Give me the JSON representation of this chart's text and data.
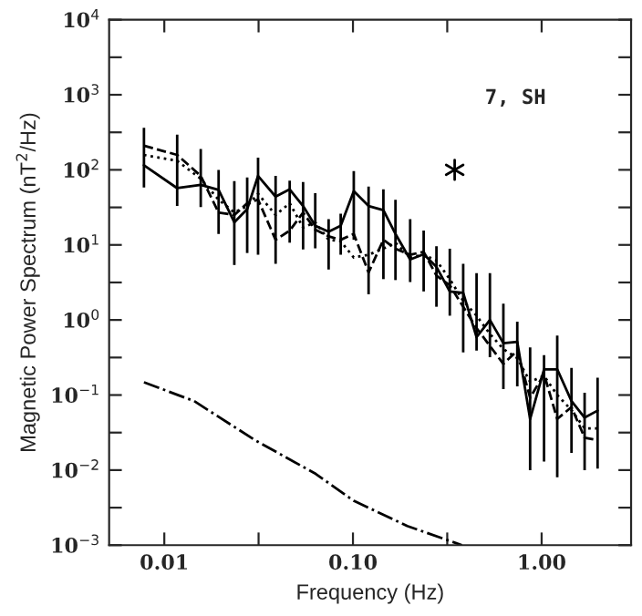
{
  "chart_data": {
    "type": "line",
    "xlabel": "Frequency (Hz)",
    "ylabel": "Magnetic Power Spectrum (nT$^{2}$/Hz)",
    "annotations": [
      "7, SH"
    ],
    "log": "xy",
    "grid": false,
    "legend": false,
    "xlim": [
      0.0051,
      2.98
    ],
    "ylim": [
      0.001,
      10000
    ],
    "xticks": [
      {
        "value": 0.01,
        "label": "0.01"
      },
      {
        "value": 0.0316,
        "label": null
      },
      {
        "value": 0.1,
        "label": "0.10"
      },
      {
        "value": 0.316,
        "label": null
      },
      {
        "value": 1,
        "label": "1.00"
      }
    ],
    "yticks": [
      {
        "value": 0.001,
        "label": "10$^{−3}$"
      },
      {
        "value": 0.00316,
        "label": null
      },
      {
        "value": 0.01,
        "label": "10$^{−2}$"
      },
      {
        "value": 0.0316,
        "label": null
      },
      {
        "value": 0.1,
        "label": "10$^{−1}$"
      },
      {
        "value": 0.316,
        "label": null
      },
      {
        "value": 1,
        "label": "10$^{0}$"
      },
      {
        "value": 3.16,
        "label": null
      },
      {
        "value": 10,
        "label": "10$^{1}$"
      },
      {
        "value": 31.6,
        "label": null
      },
      {
        "value": 100,
        "label": "10$^{2}$"
      },
      {
        "value": 316,
        "label": null
      },
      {
        "value": 1000,
        "label": "10$^{3}$"
      },
      {
        "value": 3160,
        "label": null
      },
      {
        "value": 10000,
        "label": "10$^{4}$"
      }
    ],
    "x": [
      0.0078,
      0.0117,
      0.0156,
      0.0194,
      0.0235,
      0.0275,
      0.0314,
      0.0389,
      0.0462,
      0.0544,
      0.0631,
      0.0743,
      0.0861,
      0.101,
      0.121,
      0.145,
      0.168,
      0.201,
      0.237,
      0.277,
      0.326,
      0.384,
      0.452,
      0.532,
      0.627,
      0.743,
      0.869,
      1.03,
      1.21,
      1.44,
      1.69,
      1.98
    ],
    "series": [
      {
        "color": "#000000",
        "line_style": "solid",
        "values": [
          115,
          57,
          63,
          54,
          20,
          30,
          83,
          44,
          55,
          33,
          18,
          15,
          18,
          52,
          33,
          29,
          14,
          6.4,
          7.5,
          5.1,
          2.4,
          2.3,
          0.59,
          1.0,
          0.49,
          0.51,
          0.048,
          0.22,
          0.22,
          0.083,
          0.05,
          0.062
        ],
        "errors": [
          [
            58,
            363
          ],
          [
            33,
            295
          ],
          [
            32,
            190
          ],
          [
            14,
            100
          ],
          [
            5.4,
            71
          ],
          [
            7.8,
            79
          ],
          [
            7.4,
            145
          ],
          [
            5.6,
            83
          ],
          [
            10.7,
            72
          ],
          [
            8.7,
            69
          ],
          [
            9.0,
            49
          ],
          [
            4.7,
            22
          ],
          [
            7.4,
            26
          ],
          [
            11.7,
            96
          ],
          [
            2.2,
            60
          ],
          [
            3.5,
            55
          ],
          [
            3.4,
            40
          ],
          [
            3.2,
            22
          ],
          [
            2.4,
            15.5
          ],
          [
            1.5,
            9.6
          ],
          [
            1.14,
            8.9
          ],
          [
            0.37,
            5.6
          ],
          [
            0.39,
            4.2
          ],
          [
            0.32,
            4.2
          ],
          [
            0.12,
            1.65
          ],
          [
            0.13,
            0.95
          ],
          [
            0.01,
            0.43
          ],
          [
            0.013,
            0.34
          ],
          [
            0.008,
            0.62
          ],
          [
            0.017,
            0.23
          ],
          [
            0.01,
            0.107
          ],
          [
            0.0105,
            0.17
          ]
        ]
      },
      {
        "color": "#000000",
        "line_style": "dashed",
        "values": [
          210,
          158,
          83,
          27,
          25,
          36,
          40,
          11.7,
          15.5,
          27,
          16,
          13,
          11.7,
          14,
          4.3,
          11.7,
          8.9,
          7.4,
          8.1,
          3.9,
          2.9,
          1.5,
          0.78,
          0.45,
          0.26,
          0.39,
          0.092,
          0.19,
          0.048,
          0.069,
          0.027,
          0.025
        ]
      },
      {
        "color": "#000000",
        "line_style": "dotted",
        "values": [
          158,
          132,
          76,
          40,
          27,
          33,
          48,
          25,
          36,
          17,
          20,
          11.7,
          11.2,
          6.8,
          7.4,
          8.9,
          10.7,
          6.8,
          7.4,
          6.2,
          3.5,
          1.8,
          1.14,
          0.65,
          0.41,
          0.31,
          0.15,
          0.18,
          0.1,
          0.063,
          0.036,
          0.036
        ]
      },
      {
        "color": "#000000",
        "line_style": "dashdot",
        "x": [
          0.0078,
          0.0144,
          0.0303,
          0.0635,
          0.101,
          0.194,
          0.378
        ],
        "values": [
          0.148,
          0.083,
          0.025,
          0.0089,
          0.0039,
          0.0018,
          0.001
        ]
      },
      {
        "type": "scatter",
        "color": "#000000",
        "marker": "cross",
        "x": [
          0.346
        ],
        "values": [
          100
        ]
      }
    ]
  }
}
